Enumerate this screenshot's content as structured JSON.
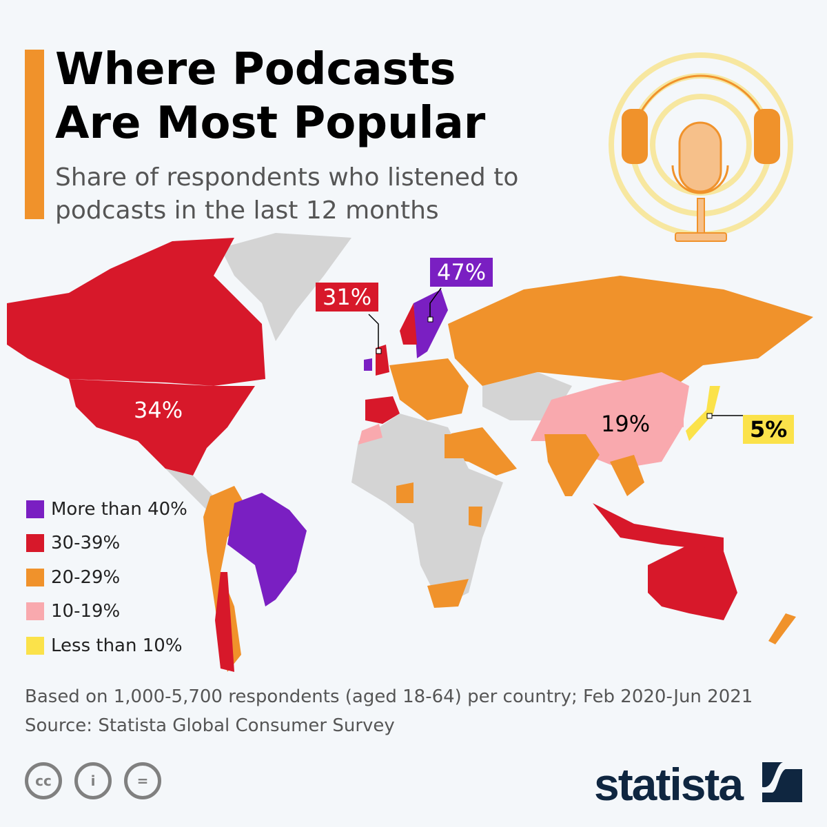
{
  "header": {
    "title": "Where Podcasts Are Most Popular",
    "subtitle": "Share of respondents who listened to podcasts in the last 12 months"
  },
  "chart_data": {
    "type": "choropleth-map",
    "title": "Where Podcasts Are Most Popular",
    "subtitle": "Share of respondents who listened to podcasts in the last 12 months",
    "legend": [
      {
        "label": "More than 40%",
        "color": "#7a1fc2"
      },
      {
        "label": "30-39%",
        "color": "#d7182a"
      },
      {
        "label": "20-29%",
        "color": "#f0922b"
      },
      {
        "label": "10-19%",
        "color": "#f9a9ae"
      },
      {
        "label": "Less than 10%",
        "color": "#fbe24a"
      }
    ],
    "no_data_color": "#d4d4d4",
    "labeled_values": [
      {
        "country": "United States",
        "label": "34%",
        "value": 34
      },
      {
        "country": "United Kingdom",
        "label": "31%",
        "value": 31
      },
      {
        "country": "Sweden",
        "label": "47%",
        "value": 47
      },
      {
        "country": "China",
        "label": "19%",
        "value": 19
      },
      {
        "country": "Japan",
        "label": "5%",
        "value": 5
      }
    ]
  },
  "footer": {
    "note": "Based on 1,000-5,700 respondents (aged 18-64) per country; Feb 2020-Jun 2021",
    "source": "Source: Statista Global Consumer Survey",
    "brand": "statista",
    "cc_icons": [
      "cc",
      "i",
      "="
    ]
  }
}
